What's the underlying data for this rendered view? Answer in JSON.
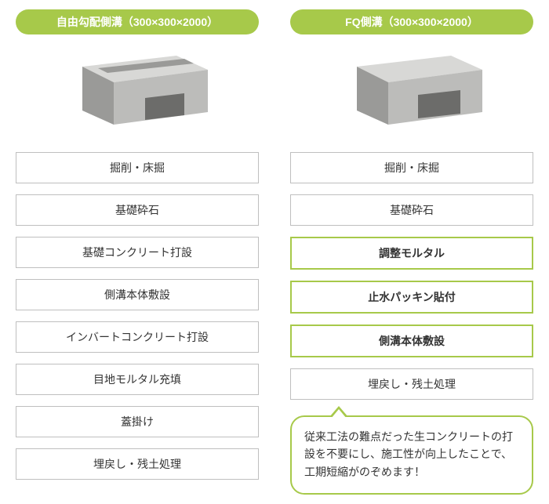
{
  "colors": {
    "accent": "#a7c94a",
    "gray_border": "#bfbfbf",
    "text": "#333333",
    "callout_bg": "#ffffff",
    "header_text": "#ffffff",
    "block_light": "#d8d8d6",
    "block_mid": "#bcbcba",
    "block_dark": "#9a9a98",
    "block_hole": "#6c6c6a"
  },
  "left": {
    "title": "自由勾配側溝（300×300×2000）",
    "image_alt": "open-top-u-channel-block",
    "open_top": true,
    "steps": [
      {
        "label": "掘削・床掘",
        "highlight": false
      },
      {
        "label": "基礎砕石",
        "highlight": false
      },
      {
        "label": "基礎コンクリート打設",
        "highlight": false
      },
      {
        "label": "側溝本体敷設",
        "highlight": false
      },
      {
        "label": "インバートコンクリート打設",
        "highlight": false
      },
      {
        "label": "目地モルタル充填",
        "highlight": false
      },
      {
        "label": "蓋掛け",
        "highlight": false
      },
      {
        "label": "埋戻し・残土処理",
        "highlight": false
      }
    ]
  },
  "right": {
    "title": "FQ側溝（300×300×2000）",
    "image_alt": "closed-box-culvert-block",
    "open_top": false,
    "steps": [
      {
        "label": "掘削・床掘",
        "highlight": false
      },
      {
        "label": "基礎砕石",
        "highlight": false
      },
      {
        "label": "調整モルタル",
        "highlight": true
      },
      {
        "label": "止水パッキン貼付",
        "highlight": true
      },
      {
        "label": "側溝本体敷設",
        "highlight": true
      },
      {
        "label": "埋戻し・残土処理",
        "highlight": false
      }
    ],
    "callout": "従来工法の難点だった生コンクリートの打設を不要にし、施工性が向上したことで、工期短縮がのぞめます！"
  }
}
